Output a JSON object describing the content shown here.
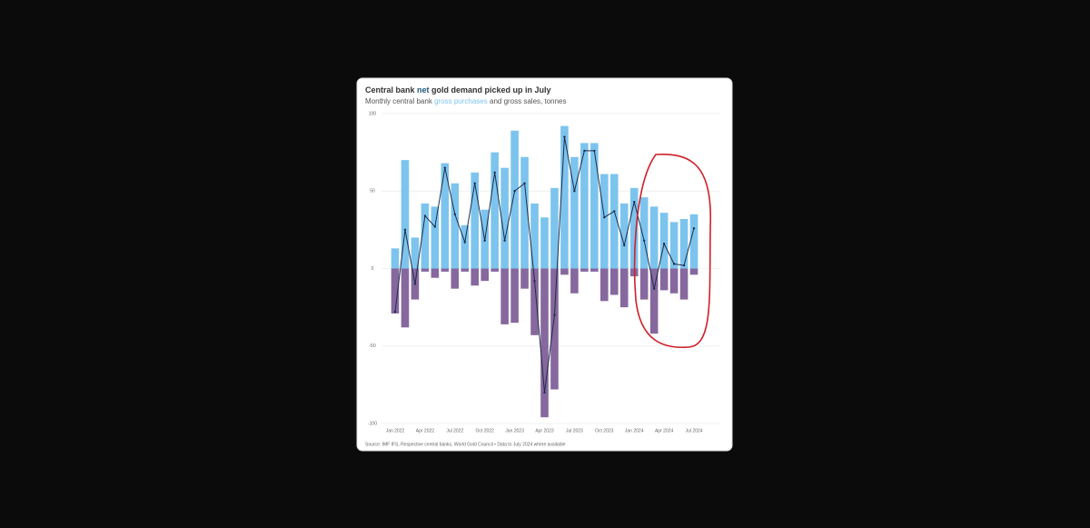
{
  "chart_data": {
    "type": "bar",
    "title": [
      "Central bank",
      "net",
      "gold demand picked up in July"
    ],
    "subtitle": [
      "Monthly central bank",
      "gross purchases",
      "and gross sales, tonnes"
    ],
    "source": "Source: IMF IFS, Respective central banks, World Gold Council • Data to July 2024 where available",
    "categories": [
      "Jan 2022",
      null,
      null,
      "Apr 2022",
      null,
      null,
      "Jul 2022",
      null,
      null,
      "Oct 2022",
      null,
      null,
      "Jan 2023",
      null,
      null,
      "Apr 2023",
      null,
      null,
      "Jul 2023",
      null,
      null,
      "Oct 2023",
      null,
      null,
      "Jan 2024",
      null,
      null,
      "Apr 2024",
      null,
      null,
      "Jul 2024"
    ],
    "series": [
      {
        "color": "#7cc4ee",
        "values": [
          13,
          70,
          20,
          42,
          40,
          68,
          55,
          28,
          62,
          38,
          75,
          65,
          89,
          72,
          42,
          33,
          52,
          92,
          72,
          81,
          81,
          61,
          61,
          42,
          52,
          46,
          40,
          36,
          30,
          32,
          35
        ]
      },
      {
        "color": "#86689e",
        "values": [
          -29,
          -38,
          -20,
          -2,
          -6,
          -2,
          -13,
          -2,
          -11,
          -8,
          -2,
          -36,
          -35,
          -13,
          -43,
          -96,
          -78,
          -4,
          -16,
          -2,
          -2,
          -21,
          -17,
          -25,
          -5,
          -20,
          -42,
          -14,
          -16,
          -20,
          -4
        ]
      },
      {
        "type": "line",
        "color": "#1e2d4a",
        "values": [
          -28,
          25,
          -10,
          34,
          27,
          65,
          35,
          17,
          55,
          18,
          62,
          18,
          50,
          55,
          -8,
          -80,
          -30,
          85,
          50,
          76,
          76,
          33,
          37,
          15,
          43,
          18,
          -13,
          16,
          3,
          2,
          26
        ]
      }
    ],
    "ylim": [
      -100,
      100
    ],
    "yticks": [
      100,
      50,
      0,
      -50,
      -100
    ],
    "grid": true
  }
}
